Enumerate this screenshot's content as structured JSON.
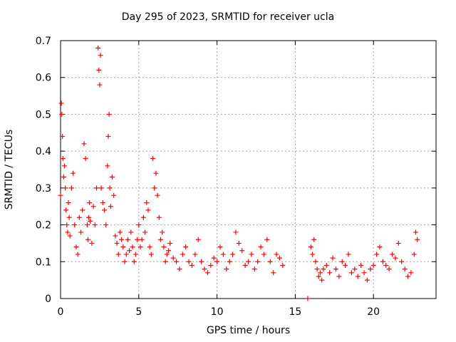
{
  "chart_data": {
    "type": "scatter",
    "title": "Day 295 of 2023, SRMTID for receiver ucla",
    "xlabel": "GPS time / hours",
    "ylabel": "SRMTID / TECUs",
    "xlim": [
      0,
      24
    ],
    "ylim": [
      0,
      0.7
    ],
    "xticks": [
      0,
      5,
      10,
      15,
      20
    ],
    "yticks": [
      0,
      0.1,
      0.2,
      0.3,
      0.4,
      0.5,
      0.6,
      0.7
    ],
    "grid": true,
    "marker": "+",
    "color": "#ff0000",
    "series": [
      {
        "name": "SRMTID",
        "x": [
          0.0,
          0.05,
          0.08,
          0.12,
          0.15,
          0.2,
          0.25,
          0.3,
          0.35,
          0.4,
          0.45,
          0.5,
          0.55,
          0.6,
          0.7,
          0.8,
          0.9,
          1.0,
          1.1,
          1.2,
          1.3,
          1.4,
          1.5,
          1.6,
          1.7,
          1.75,
          1.8,
          1.85,
          1.9,
          2.0,
          2.1,
          2.2,
          2.3,
          2.4,
          2.45,
          2.5,
          2.55,
          2.6,
          2.7,
          2.8,
          2.9,
          3.0,
          3.05,
          3.1,
          3.15,
          3.2,
          3.3,
          3.4,
          3.5,
          3.6,
          3.7,
          3.8,
          3.9,
          4.0,
          4.1,
          4.2,
          4.3,
          4.4,
          4.5,
          4.6,
          4.7,
          4.8,
          4.9,
          5.0,
          5.1,
          5.2,
          5.3,
          5.4,
          5.5,
          5.6,
          5.7,
          5.8,
          5.9,
          6.0,
          6.1,
          6.2,
          6.3,
          6.4,
          6.5,
          6.6,
          6.7,
          6.8,
          6.9,
          7.0,
          7.2,
          7.4,
          7.6,
          7.8,
          8.0,
          8.2,
          8.4,
          8.6,
          8.8,
          9.0,
          9.2,
          9.4,
          9.6,
          9.8,
          10.0,
          10.2,
          10.4,
          10.6,
          10.8,
          11.0,
          11.2,
          11.4,
          11.6,
          11.8,
          12.0,
          12.2,
          12.4,
          12.6,
          12.8,
          13.0,
          13.2,
          13.4,
          13.6,
          13.8,
          14.0,
          14.2,
          15.8,
          16.0,
          16.1,
          16.2,
          16.3,
          16.4,
          16.5,
          16.6,
          16.7,
          16.8,
          17.0,
          17.2,
          17.4,
          17.6,
          17.8,
          18.0,
          18.2,
          18.4,
          18.6,
          18.8,
          19.0,
          19.2,
          19.4,
          19.6,
          19.8,
          20.0,
          20.2,
          20.4,
          20.6,
          20.8,
          21.0,
          21.2,
          21.4,
          21.6,
          21.8,
          22.0,
          22.2,
          22.4,
          22.6,
          22.7,
          22.8
        ],
        "y": [
          0.28,
          0.53,
          0.5,
          0.44,
          0.38,
          0.33,
          0.36,
          0.3,
          0.24,
          0.2,
          0.18,
          0.26,
          0.22,
          0.17,
          0.3,
          0.34,
          0.2,
          0.14,
          0.12,
          0.22,
          0.18,
          0.24,
          0.42,
          0.38,
          0.2,
          0.16,
          0.22,
          0.26,
          0.21,
          0.15,
          0.25,
          0.2,
          0.3,
          0.68,
          0.62,
          0.58,
          0.66,
          0.3,
          0.26,
          0.24,
          0.2,
          0.36,
          0.44,
          0.5,
          0.3,
          0.25,
          0.33,
          0.28,
          0.17,
          0.15,
          0.12,
          0.18,
          0.16,
          0.14,
          0.1,
          0.12,
          0.16,
          0.13,
          0.18,
          0.14,
          0.1,
          0.12,
          0.16,
          0.2,
          0.14,
          0.16,
          0.22,
          0.18,
          0.26,
          0.24,
          0.14,
          0.12,
          0.38,
          0.3,
          0.34,
          0.28,
          0.22,
          0.16,
          0.18,
          0.14,
          0.1,
          0.12,
          0.13,
          0.15,
          0.11,
          0.1,
          0.08,
          0.12,
          0.14,
          0.1,
          0.09,
          0.12,
          0.16,
          0.1,
          0.08,
          0.07,
          0.09,
          0.11,
          0.1,
          0.14,
          0.12,
          0.08,
          0.1,
          0.12,
          0.18,
          0.15,
          0.13,
          0.09,
          0.1,
          0.12,
          0.08,
          0.1,
          0.14,
          0.12,
          0.16,
          0.1,
          0.07,
          0.12,
          0.11,
          0.09,
          0.0,
          0.14,
          0.12,
          0.16,
          0.1,
          0.08,
          0.06,
          0.07,
          0.05,
          0.08,
          0.09,
          0.07,
          0.11,
          0.08,
          0.06,
          0.1,
          0.09,
          0.12,
          0.07,
          0.08,
          0.06,
          0.09,
          0.07,
          0.05,
          0.08,
          0.09,
          0.12,
          0.14,
          0.1,
          0.09,
          0.08,
          0.12,
          0.11,
          0.15,
          0.1,
          0.08,
          0.06,
          0.07,
          0.12,
          0.18,
          0.16
        ]
      }
    ]
  }
}
